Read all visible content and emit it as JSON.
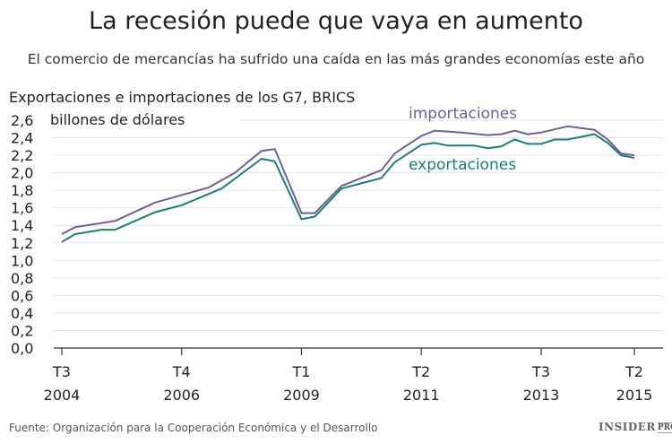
{
  "title": "La recesión puede que vaya en aumento",
  "subtitle": "El comercio de mercancías ha sufrido una caída en las más grandes economías este año",
  "source": "Fuente: Organización para la Cooperación Económica y el Desarrollo",
  "logo": {
    "main": "INSIDER",
    "small": "PRO"
  },
  "chart_data": {
    "type": "line",
    "title": "Exportaciones e importaciones de los G7, BRICS",
    "ylabel": "billones de dólares",
    "ylim": [
      0,
      2.6
    ],
    "yticks": [
      "0,0",
      "0,2",
      "0,4",
      "0,6",
      "0,8",
      "1,0",
      "1,2",
      "1,4",
      "1,6",
      "1,8",
      "2,0",
      "2,2",
      "2,4",
      "2,6"
    ],
    "xticks": [
      {
        "x": 2004.5,
        "q": "T3",
        "year": "2004"
      },
      {
        "x": 2006.75,
        "q": "T4",
        "year": "2006"
      },
      {
        "x": 2009.0,
        "q": "T1",
        "year": "2009"
      },
      {
        "x": 2011.25,
        "q": "T2",
        "year": "2011"
      },
      {
        "x": 2013.5,
        "q": "T3",
        "year": "2013"
      },
      {
        "x": 2015.25,
        "q": "T2",
        "year": "2015"
      }
    ],
    "grid": true,
    "series": [
      {
        "name": "importaciones",
        "color": "#6f5f9b",
        "x": [
          2004.5,
          2004.75,
          2005.5,
          2006.25,
          2007.25,
          2007.75,
          2008.25,
          2008.5,
          2009.0,
          2009.25,
          2009.75,
          2010.5,
          2010.75,
          2011.25,
          2011.5,
          2012.0,
          2012.5,
          2012.75,
          2013.0,
          2013.25,
          2013.5,
          2014.0,
          2014.5,
          2014.75,
          2015.0,
          2015.25
        ],
        "y": [
          1.3,
          1.38,
          1.45,
          1.66,
          1.83,
          2.0,
          2.25,
          2.27,
          1.54,
          1.54,
          1.85,
          2.03,
          2.22,
          2.42,
          2.48,
          2.46,
          2.43,
          2.44,
          2.48,
          2.44,
          2.46,
          2.53,
          2.49,
          2.38,
          2.22,
          2.2
        ]
      },
      {
        "name": "exportaciones",
        "color": "#17807a",
        "x": [
          2004.5,
          2004.75,
          2005.25,
          2005.5,
          2006.25,
          2006.75,
          2007.5,
          2008.25,
          2008.5,
          2009.0,
          2009.25,
          2009.75,
          2010.5,
          2010.75,
          2011.25,
          2011.5,
          2011.75,
          2012.25,
          2012.5,
          2012.75,
          2013.0,
          2013.25,
          2013.5,
          2013.75,
          2014.0,
          2014.5,
          2014.75,
          2015.0,
          2015.25
        ],
        "y": [
          1.21,
          1.3,
          1.35,
          1.35,
          1.55,
          1.63,
          1.82,
          2.16,
          2.13,
          1.47,
          1.5,
          1.82,
          1.94,
          2.12,
          2.32,
          2.34,
          2.31,
          2.31,
          2.28,
          2.3,
          2.38,
          2.33,
          2.33,
          2.38,
          2.38,
          2.44,
          2.34,
          2.2,
          2.17
        ]
      }
    ]
  }
}
